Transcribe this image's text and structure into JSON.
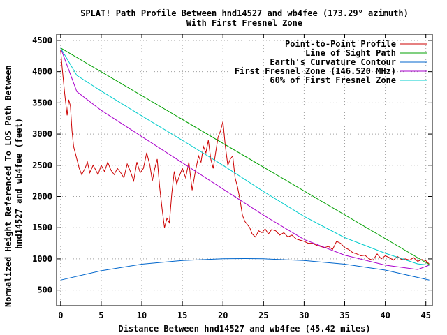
{
  "chart_data": {
    "type": "line",
    "title": "SPLAT! Path Profile Between hnd14527 and wb4fee (173.29° azimuth)",
    "subtitle": "With First Fresnel Zone",
    "xlabel": "Distance Between hnd14527 and wb4fee (45.42 miles)",
    "ylabel": "Normalized Height Referenced To LOS Path Between hnd14527 and wb4fee (feet)",
    "xlim": [
      -0.5,
      45.8
    ],
    "ylim": [
      250,
      4600
    ],
    "x_ticks": [
      0,
      5,
      10,
      15,
      20,
      25,
      30,
      35,
      40,
      45
    ],
    "y_ticks": [
      500,
      1000,
      1500,
      2000,
      2500,
      3000,
      3500,
      4000,
      4500
    ],
    "grid": true,
    "legend_position": "top-right",
    "series": [
      {
        "name": "Point-to-Point Profile",
        "color": "#cc0000",
        "x": [
          0,
          0.2,
          0.5,
          0.8,
          1.0,
          1.2,
          1.4,
          1.6,
          1.8,
          2.0,
          2.3,
          2.6,
          3.0,
          3.3,
          3.6,
          4.0,
          4.3,
          4.6,
          5.0,
          5.4,
          5.8,
          6.2,
          6.6,
          7.0,
          7.4,
          7.8,
          8.2,
          8.6,
          9.0,
          9.4,
          9.8,
          10.2,
          10.6,
          11.0,
          11.3,
          11.6,
          11.9,
          12.2,
          12.5,
          12.8,
          13.1,
          13.4,
          13.7,
          14.0,
          14.3,
          14.6,
          15.0,
          15.4,
          15.8,
          16.2,
          16.6,
          17.0,
          17.3,
          17.6,
          17.9,
          18.2,
          18.5,
          18.8,
          19.1,
          19.4,
          19.7,
          20.0,
          20.3,
          20.6,
          20.9,
          21.2,
          21.5,
          21.8,
          22.1,
          22.4,
          22.7,
          23.0,
          23.3,
          23.6,
          24.0,
          24.4,
          24.8,
          25.2,
          25.6,
          26.0,
          26.5,
          27.0,
          27.5,
          28.0,
          28.5,
          29.0,
          29.5,
          30.0,
          30.5,
          31.0,
          31.5,
          32.0,
          32.5,
          33.0,
          33.5,
          34.0,
          34.5,
          35.0,
          35.5,
          36.0,
          36.5,
          37.0,
          37.5,
          38.0,
          38.5,
          39.0,
          39.5,
          40.0,
          40.5,
          41.0,
          41.5,
          42.0,
          42.5,
          43.0,
          43.5,
          44.0,
          44.5,
          45.0,
          45.4
        ],
        "y": [
          4350,
          4050,
          3650,
          3300,
          3550,
          3450,
          3050,
          2800,
          2700,
          2600,
          2450,
          2350,
          2450,
          2550,
          2380,
          2500,
          2430,
          2350,
          2500,
          2400,
          2550,
          2420,
          2350,
          2450,
          2380,
          2300,
          2520,
          2400,
          2250,
          2550,
          2380,
          2450,
          2700,
          2500,
          2250,
          2450,
          2600,
          2150,
          1800,
          1500,
          1650,
          1580,
          2050,
          2400,
          2200,
          2320,
          2450,
          2300,
          2550,
          2100,
          2400,
          2650,
          2550,
          2800,
          2700,
          2900,
          2600,
          2450,
          2700,
          2950,
          3050,
          3200,
          2800,
          2500,
          2600,
          2650,
          2300,
          2150,
          1950,
          1700,
          1600,
          1550,
          1500,
          1400,
          1350,
          1450,
          1420,
          1480,
          1400,
          1470,
          1450,
          1380,
          1420,
          1350,
          1380,
          1320,
          1300,
          1280,
          1250,
          1250,
          1220,
          1200,
          1180,
          1200,
          1150,
          1280,
          1250,
          1180,
          1150,
          1100,
          1080,
          1050,
          1060,
          1000,
          980,
          1080,
          1000,
          1050,
          1020,
          980,
          1040,
          990,
          1000,
          980,
          1020,
          960,
          990,
          970,
          920
        ]
      },
      {
        "name": "Line of Sight Path",
        "color": "#00a000",
        "x": [
          0,
          45.42
        ],
        "y": [
          4380,
          910
        ]
      },
      {
        "name": "Earth's Curvature Contour",
        "color": "#0066cc",
        "x": [
          0,
          5,
          10,
          15,
          20,
          22.7,
          25,
          30,
          35,
          40,
          45.42
        ],
        "y": [
          660,
          810,
          915,
          975,
          1003,
          1005,
          1002,
          975,
          915,
          820,
          660
        ]
      },
      {
        "name": "First Fresnel Zone (146.520 MHz)",
        "color": "#aa00cc",
        "x": [
          0,
          2,
          5,
          10,
          15,
          20,
          25,
          30,
          35,
          40,
          44,
          45.42
        ],
        "y": [
          4380,
          3680,
          3380,
          2960,
          2540,
          2120,
          1700,
          1310,
          1060,
          900,
          830,
          900
        ]
      },
      {
        "name": "60% of First Fresnel Zone",
        "color": "#00cccc",
        "x": [
          0,
          2,
          5,
          10,
          15,
          20,
          25,
          30,
          35,
          40,
          44,
          45.42
        ],
        "y": [
          4380,
          3940,
          3690,
          3290,
          2900,
          2500,
          2080,
          1680,
          1340,
          1090,
          920,
          900
        ]
      }
    ]
  }
}
